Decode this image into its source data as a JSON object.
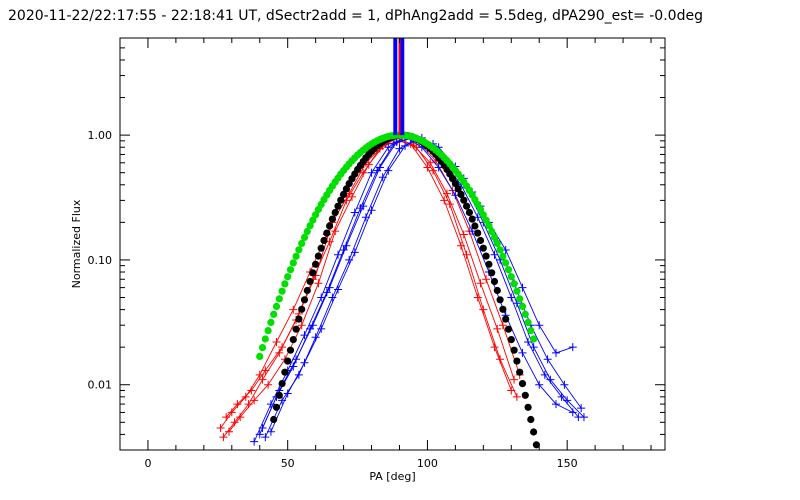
{
  "chart_data": {
    "type": "line",
    "title": "2020-11-22/22:17:55 - 22:18:41 UT, dSectr2add = 1, dPhAng2add = 5.5deg, dPA290_est= -0.0deg",
    "xlabel": "PA [deg]",
    "ylabel": "Normalized Flux",
    "xlim": [
      -10,
      185
    ],
    "ylim": [
      0.003,
      6.0
    ],
    "yscale": "log",
    "x_ticks": [
      0,
      50,
      100,
      150
    ],
    "x_tick_labels": [
      "0",
      "50",
      "100",
      "150"
    ],
    "y_ticks": [
      0.01,
      0.1,
      1.0
    ],
    "y_tick_labels": [
      "0.01",
      "0.10",
      "1.00"
    ],
    "vertical_markers": [
      {
        "x": 88.5,
        "color": "#0000ff"
      },
      {
        "x": 91.0,
        "color": "#0000ff"
      },
      {
        "x": 90.0,
        "color": "#ff0000"
      }
    ],
    "series": [
      {
        "name": "red-sector-1",
        "color": "#ff0000",
        "marker": "+",
        "x": [
          26,
          30,
          35,
          40,
          46,
          52,
          58,
          64,
          70,
          76,
          82,
          88,
          94,
          100,
          106,
          112,
          118,
          124,
          130
        ],
        "y": [
          0.0045,
          0.006,
          0.008,
          0.012,
          0.022,
          0.04,
          0.08,
          0.16,
          0.33,
          0.55,
          0.8,
          0.97,
          0.85,
          0.55,
          0.3,
          0.13,
          0.05,
          0.02,
          0.009
        ]
      },
      {
        "name": "red-sector-2",
        "color": "#ff0000",
        "marker": "+",
        "x": [
          27,
          31,
          36,
          41,
          47,
          53,
          59,
          65,
          71,
          77,
          83,
          89,
          95,
          101,
          107,
          113,
          119,
          125,
          131
        ],
        "y": [
          0.0038,
          0.005,
          0.007,
          0.011,
          0.018,
          0.033,
          0.07,
          0.14,
          0.3,
          0.5,
          0.78,
          0.95,
          0.83,
          0.6,
          0.34,
          0.16,
          0.065,
          0.028,
          0.011
        ]
      },
      {
        "name": "red-sector-3",
        "color": "#ff0000",
        "marker": "+",
        "x": [
          28,
          32,
          37,
          42,
          48,
          54,
          60,
          66,
          72,
          78,
          84,
          90,
          96,
          102,
          108,
          114,
          120,
          126,
          132
        ],
        "y": [
          0.0055,
          0.007,
          0.009,
          0.013,
          0.02,
          0.037,
          0.075,
          0.2,
          0.34,
          0.6,
          0.82,
          0.9,
          0.8,
          0.52,
          0.28,
          0.11,
          0.04,
          0.016,
          0.008
        ]
      },
      {
        "name": "red-sector-4",
        "color": "#ff0000",
        "marker": "+",
        "x": [
          29,
          33,
          38,
          43,
          49,
          55,
          61,
          67,
          73,
          79,
          85,
          91,
          97,
          103,
          109,
          115,
          121,
          127,
          133
        ],
        "y": [
          0.0042,
          0.0055,
          0.0075,
          0.01,
          0.016,
          0.03,
          0.065,
          0.17,
          0.32,
          0.58,
          0.86,
          0.98,
          0.87,
          0.62,
          0.36,
          0.17,
          0.07,
          0.03,
          0.012
        ]
      },
      {
        "name": "blue-sector-1",
        "color": "#0000ff",
        "marker": "+",
        "x": [
          38,
          44,
          50,
          56,
          62,
          68,
          74,
          80,
          86,
          92,
          98,
          104,
          110,
          116,
          122,
          128,
          134,
          140,
          146,
          152
        ],
        "y": [
          0.0035,
          0.007,
          0.013,
          0.025,
          0.05,
          0.11,
          0.24,
          0.5,
          0.8,
          0.97,
          0.8,
          0.55,
          0.33,
          0.17,
          0.08,
          0.036,
          0.018,
          0.01,
          0.007,
          0.006
        ]
      },
      {
        "name": "blue-sector-2",
        "color": "#0000ff",
        "marker": "+",
        "x": [
          40,
          46,
          52,
          58,
          64,
          70,
          76,
          82,
          88,
          94,
          100,
          106,
          112,
          118,
          124,
          130,
          136,
          142,
          148,
          154
        ],
        "y": [
          0.004,
          0.008,
          0.014,
          0.028,
          0.055,
          0.12,
          0.26,
          0.52,
          0.85,
          0.94,
          0.78,
          0.6,
          0.4,
          0.22,
          0.11,
          0.05,
          0.022,
          0.012,
          0.008,
          0.0055
        ]
      },
      {
        "name": "blue-sector-3",
        "color": "#0000ff",
        "marker": "+",
        "x": [
          41,
          47,
          53,
          59,
          65,
          71,
          77,
          83,
          89,
          95,
          101,
          107,
          113,
          119,
          125,
          131,
          137,
          143,
          149,
          155
        ],
        "y": [
          0.0045,
          0.009,
          0.016,
          0.03,
          0.06,
          0.13,
          0.27,
          0.55,
          0.88,
          0.96,
          0.82,
          0.62,
          0.45,
          0.27,
          0.14,
          0.065,
          0.03,
          0.016,
          0.01,
          0.0065
        ]
      },
      {
        "name": "blue-sector-4",
        "color": "#0000ff",
        "marker": "+",
        "x": [
          42,
          48,
          54,
          60,
          66,
          72,
          78,
          84,
          90,
          96,
          102,
          108,
          114,
          120,
          126,
          132,
          138,
          144,
          150,
          156
        ],
        "y": [
          0.0038,
          0.0075,
          0.012,
          0.024,
          0.05,
          0.1,
          0.22,
          0.46,
          0.78,
          0.93,
          0.85,
          0.58,
          0.38,
          0.2,
          0.1,
          0.045,
          0.02,
          0.011,
          0.0075,
          0.0055
        ]
      },
      {
        "name": "blue-sector-5",
        "color": "#0000ff",
        "marker": "+",
        "x": [
          44,
          50,
          56,
          62,
          68,
          74,
          80,
          86,
          92,
          98,
          104,
          110,
          116,
          122,
          128,
          134,
          140,
          146,
          152
        ],
        "y": [
          0.0042,
          0.0085,
          0.015,
          0.028,
          0.058,
          0.115,
          0.25,
          0.52,
          0.82,
          0.95,
          0.8,
          0.56,
          0.35,
          0.2,
          0.12,
          0.06,
          0.03,
          0.018,
          0.02
        ]
      }
    ],
    "fits": [
      {
        "name": "green-gaussian-fit",
        "color": "#00e000",
        "center": 90,
        "sigma": 17.5,
        "amplitude": 1.0,
        "x_range": [
          40,
          138
        ]
      },
      {
        "name": "black-gaussian-fit",
        "color": "#000000",
        "center": 91,
        "sigma": 14.2,
        "amplitude": 1.0,
        "x_range": [
          45,
          140
        ]
      }
    ]
  }
}
